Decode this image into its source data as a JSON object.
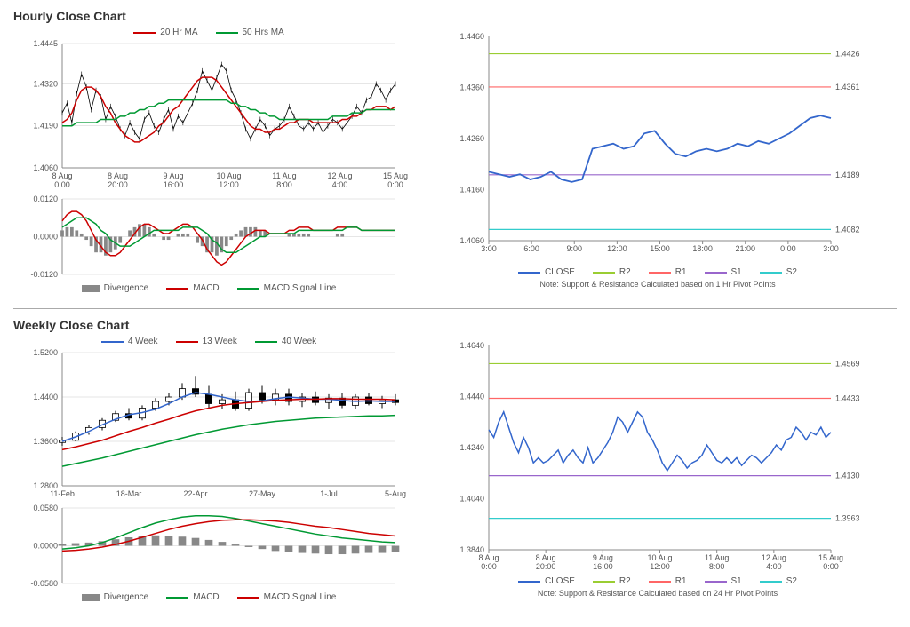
{
  "hourly": {
    "title": "Hourly Close Chart",
    "main": {
      "legend": [
        {
          "label": "20 Hr MA",
          "color": "#cc0000"
        },
        {
          "label": "50 Hrs MA",
          "color": "#009933"
        }
      ],
      "yticks": [
        "1.4445",
        "1.4320",
        "1.4190",
        "1.4060"
      ],
      "ylim": [
        1.406,
        1.4445
      ],
      "xticks": [
        "8 Aug\n0:00",
        "8 Aug\n20:00",
        "9 Aug\n16:00",
        "10 Aug\n12:00",
        "11 Aug\n8:00",
        "12 Aug\n4:00",
        "15 Aug\n0:00"
      ],
      "price_color": "#000000",
      "ma20_color": "#cc0000",
      "ma50_color": "#009933",
      "price": [
        1.423,
        1.426,
        1.42,
        1.429,
        1.435,
        1.431,
        1.424,
        1.43,
        1.428,
        1.421,
        1.425,
        1.422,
        1.418,
        1.416,
        1.42,
        1.417,
        1.415,
        1.421,
        1.423,
        1.419,
        1.417,
        1.421,
        1.424,
        1.418,
        1.422,
        1.42,
        1.423,
        1.426,
        1.43,
        1.436,
        1.433,
        1.43,
        1.434,
        1.438,
        1.436,
        1.43,
        1.427,
        1.423,
        1.418,
        1.415,
        1.418,
        1.421,
        1.419,
        1.416,
        1.418,
        1.419,
        1.421,
        1.425,
        1.422,
        1.419,
        1.418,
        1.42,
        1.418,
        1.42,
        1.417,
        1.419,
        1.421,
        1.42,
        1.418,
        1.42,
        1.422,
        1.425,
        1.423,
        1.427,
        1.428,
        1.432,
        1.43,
        1.427,
        1.43,
        1.432
      ],
      "ma20": [
        1.42,
        1.421,
        1.423,
        1.427,
        1.43,
        1.431,
        1.431,
        1.43,
        1.428,
        1.425,
        1.423,
        1.42,
        1.418,
        1.416,
        1.415,
        1.414,
        1.414,
        1.415,
        1.416,
        1.417,
        1.419,
        1.42,
        1.422,
        1.424,
        1.425,
        1.427,
        1.429,
        1.431,
        1.433,
        1.434,
        1.434,
        1.434,
        1.433,
        1.431,
        1.429,
        1.427,
        1.425,
        1.423,
        1.421,
        1.419,
        1.418,
        1.418,
        1.417,
        1.417,
        1.418,
        1.418,
        1.419,
        1.42,
        1.42,
        1.421,
        1.421,
        1.421,
        1.42,
        1.42,
        1.42,
        1.42,
        1.42,
        1.42,
        1.421,
        1.421,
        1.422,
        1.422,
        1.423,
        1.424,
        1.424,
        1.425,
        1.425,
        1.425,
        1.424,
        1.425
      ],
      "ma50": [
        1.419,
        1.419,
        1.419,
        1.42,
        1.42,
        1.42,
        1.42,
        1.42,
        1.421,
        1.421,
        1.421,
        1.421,
        1.422,
        1.422,
        1.423,
        1.423,
        1.424,
        1.424,
        1.425,
        1.425,
        1.426,
        1.426,
        1.427,
        1.427,
        1.427,
        1.427,
        1.427,
        1.427,
        1.427,
        1.427,
        1.427,
        1.427,
        1.427,
        1.427,
        1.427,
        1.426,
        1.426,
        1.425,
        1.425,
        1.424,
        1.424,
        1.423,
        1.423,
        1.422,
        1.422,
        1.421,
        1.421,
        1.421,
        1.421,
        1.421,
        1.421,
        1.421,
        1.421,
        1.421,
        1.421,
        1.421,
        1.422,
        1.422,
        1.422,
        1.422,
        1.423,
        1.423,
        1.423,
        1.424,
        1.424,
        1.424,
        1.424,
        1.424,
        1.424,
        1.424
      ]
    },
    "macd": {
      "legend": [
        {
          "label": "Divergence",
          "type": "bar",
          "color": "#888888"
        },
        {
          "label": "MACD",
          "color": "#cc0000"
        },
        {
          "label": "MACD Signal Line",
          "color": "#009933"
        }
      ],
      "yticks": [
        "0.0120",
        "0.0000",
        "-0.0120"
      ],
      "ylim": [
        -0.012,
        0.012
      ],
      "macd": [
        0.005,
        0.007,
        0.008,
        0.008,
        0.007,
        0.005,
        0.002,
        -0.001,
        -0.003,
        -0.005,
        -0.006,
        -0.006,
        -0.005,
        -0.003,
        -0.001,
        0.001,
        0.003,
        0.004,
        0.004,
        0.003,
        0.002,
        0.001,
        0.001,
        0.002,
        0.003,
        0.004,
        0.004,
        0.003,
        0.001,
        -0.001,
        -0.004,
        -0.006,
        -0.008,
        -0.009,
        -0.008,
        -0.006,
        -0.004,
        -0.002,
        0.0,
        0.001,
        0.002,
        0.002,
        0.002,
        0.001,
        0.001,
        0.001,
        0.001,
        0.002,
        0.002,
        0.003,
        0.003,
        0.003,
        0.002,
        0.002,
        0.002,
        0.002,
        0.002,
        0.003,
        0.003,
        0.003,
        0.003,
        0.003,
        0.002,
        0.002,
        0.002,
        0.002,
        0.002,
        0.002,
        0.002,
        0.002
      ],
      "signal": [
        0.003,
        0.004,
        0.005,
        0.006,
        0.006,
        0.006,
        0.005,
        0.004,
        0.002,
        0.001,
        -0.001,
        -0.002,
        -0.003,
        -0.003,
        -0.003,
        -0.002,
        -0.001,
        0.0,
        0.001,
        0.002,
        0.002,
        0.002,
        0.002,
        0.002,
        0.002,
        0.003,
        0.003,
        0.003,
        0.003,
        0.002,
        0.001,
        -0.001,
        -0.002,
        -0.004,
        -0.005,
        -0.005,
        -0.005,
        -0.004,
        -0.003,
        -0.002,
        -0.001,
        0.0,
        0.0,
        0.001,
        0.001,
        0.001,
        0.001,
        0.001,
        0.001,
        0.002,
        0.002,
        0.002,
        0.002,
        0.002,
        0.002,
        0.002,
        0.002,
        0.002,
        0.002,
        0.003,
        0.003,
        0.003,
        0.002,
        0.002,
        0.002,
        0.002,
        0.002,
        0.002,
        0.002,
        0.002
      ],
      "divergence": [
        0.002,
        0.003,
        0.003,
        0.002,
        0.001,
        -0.001,
        -0.003,
        -0.005,
        -0.005,
        -0.006,
        -0.005,
        -0.004,
        -0.002,
        0.0,
        0.002,
        0.003,
        0.004,
        0.004,
        0.003,
        0.001,
        0.0,
        -0.001,
        -0.001,
        0.0,
        0.001,
        0.001,
        0.001,
        0.0,
        -0.002,
        -0.003,
        -0.005,
        -0.005,
        -0.006,
        -0.005,
        -0.003,
        -0.001,
        0.001,
        0.002,
        0.003,
        0.003,
        0.003,
        0.002,
        0.002,
        0.0,
        0.0,
        0.0,
        0.0,
        0.001,
        0.001,
        0.001,
        0.001,
        0.001,
        0.0,
        0.0,
        0.0,
        0.0,
        0.0,
        0.001,
        0.001,
        0.0,
        0.0,
        0.0,
        0.0,
        0.0,
        0.0,
        0.0,
        0.0,
        0.0,
        0.0,
        0.0
      ]
    },
    "pivot": {
      "yticks": [
        "1.4460",
        "1.4360",
        "1.4260",
        "1.4160",
        "1.4060"
      ],
      "ylim": [
        1.406,
        1.446
      ],
      "xticks": [
        "3:00",
        "6:00",
        "9:00",
        "12:00",
        "15:00",
        "18:00",
        "21:00",
        "0:00",
        "3:00"
      ],
      "levels": [
        {
          "name": "R2",
          "value": 1.4426,
          "color": "#9acd32"
        },
        {
          "name": "R1",
          "value": 1.4361,
          "color": "#ff6666"
        },
        {
          "name": "S1",
          "value": 1.4189,
          "color": "#9966cc"
        },
        {
          "name": "S2",
          "value": 1.4082,
          "color": "#33cccc"
        }
      ],
      "close_color": "#3366cc",
      "close": [
        1.4195,
        1.419,
        1.4185,
        1.419,
        1.418,
        1.4185,
        1.4195,
        1.418,
        1.4175,
        1.418,
        1.424,
        1.4245,
        1.425,
        1.424,
        1.4245,
        1.427,
        1.4275,
        1.425,
        1.423,
        1.4225,
        1.4235,
        1.424,
        1.4235,
        1.424,
        1.425,
        1.4245,
        1.4255,
        1.425,
        1.426,
        1.427,
        1.4285,
        1.43,
        1.4305,
        1.43
      ],
      "legend": [
        {
          "label": "CLOSE",
          "color": "#3366cc"
        },
        {
          "label": "R2",
          "color": "#9acd32"
        },
        {
          "label": "R1",
          "color": "#ff6666"
        },
        {
          "label": "S1",
          "color": "#9966cc"
        },
        {
          "label": "S2",
          "color": "#33cccc"
        }
      ],
      "note": "Note: Support & Resistance Calculated based on 1 Hr Pivot Points"
    }
  },
  "weekly": {
    "title": "Weekly Close Chart",
    "main": {
      "legend": [
        {
          "label": "4 Week",
          "color": "#3366cc"
        },
        {
          "label": "13 Week",
          "color": "#cc0000"
        },
        {
          "label": "40 Week",
          "color": "#009933"
        }
      ],
      "yticks": [
        "1.5200",
        "1.4400",
        "1.3600",
        "1.2800"
      ],
      "ylim": [
        1.28,
        1.52
      ],
      "xticks": [
        "11-Feb",
        "18-Mar",
        "22-Apr",
        "27-May",
        "1-Jul",
        "5-Aug"
      ],
      "candles": [
        {
          "o": 1.358,
          "h": 1.368,
          "l": 1.352,
          "c": 1.362
        },
        {
          "o": 1.362,
          "h": 1.378,
          "l": 1.36,
          "c": 1.375
        },
        {
          "o": 1.375,
          "h": 1.39,
          "l": 1.372,
          "c": 1.385
        },
        {
          "o": 1.385,
          "h": 1.402,
          "l": 1.38,
          "c": 1.398
        },
        {
          "o": 1.398,
          "h": 1.415,
          "l": 1.395,
          "c": 1.41
        },
        {
          "o": 1.41,
          "h": 1.42,
          "l": 1.398,
          "c": 1.402
        },
        {
          "o": 1.402,
          "h": 1.425,
          "l": 1.398,
          "c": 1.42
        },
        {
          "o": 1.42,
          "h": 1.438,
          "l": 1.415,
          "c": 1.432
        },
        {
          "o": 1.432,
          "h": 1.448,
          "l": 1.425,
          "c": 1.44
        },
        {
          "o": 1.44,
          "h": 1.465,
          "l": 1.435,
          "c": 1.455
        },
        {
          "o": 1.455,
          "h": 1.478,
          "l": 1.44,
          "c": 1.445
        },
        {
          "o": 1.445,
          "h": 1.46,
          "l": 1.42,
          "c": 1.428
        },
        {
          "o": 1.428,
          "h": 1.445,
          "l": 1.418,
          "c": 1.435
        },
        {
          "o": 1.435,
          "h": 1.45,
          "l": 1.415,
          "c": 1.42
        },
        {
          "o": 1.42,
          "h": 1.455,
          "l": 1.415,
          "c": 1.448
        },
        {
          "o": 1.448,
          "h": 1.46,
          "l": 1.428,
          "c": 1.435
        },
        {
          "o": 1.435,
          "h": 1.455,
          "l": 1.425,
          "c": 1.445
        },
        {
          "o": 1.445,
          "h": 1.455,
          "l": 1.425,
          "c": 1.432
        },
        {
          "o": 1.432,
          "h": 1.448,
          "l": 1.422,
          "c": 1.44
        },
        {
          "o": 1.44,
          "h": 1.45,
          "l": 1.425,
          "c": 1.43
        },
        {
          "o": 1.43,
          "h": 1.445,
          "l": 1.418,
          "c": 1.438
        },
        {
          "o": 1.438,
          "h": 1.448,
          "l": 1.42,
          "c": 1.425
        },
        {
          "o": 1.425,
          "h": 1.445,
          "l": 1.418,
          "c": 1.44
        },
        {
          "o": 1.44,
          "h": 1.448,
          "l": 1.425,
          "c": 1.428
        },
        {
          "o": 1.428,
          "h": 1.442,
          "l": 1.42,
          "c": 1.435
        },
        {
          "o": 1.435,
          "h": 1.445,
          "l": 1.425,
          "c": 1.43
        }
      ],
      "ma4_color": "#3366cc",
      "ma13_color": "#cc0000",
      "ma40_color": "#009933",
      "ma4": [
        1.36,
        1.368,
        1.378,
        1.39,
        1.4,
        1.408,
        1.412,
        1.418,
        1.428,
        1.44,
        1.448,
        1.445,
        1.44,
        1.435,
        1.432,
        1.433,
        1.437,
        1.44,
        1.438,
        1.436,
        1.436,
        1.434,
        1.432,
        1.433,
        1.432,
        1.432
      ],
      "ma13": [
        1.345,
        1.35,
        1.356,
        1.362,
        1.37,
        1.378,
        1.385,
        1.393,
        1.4,
        1.408,
        1.415,
        1.42,
        1.425,
        1.428,
        1.43,
        1.432,
        1.434,
        1.435,
        1.436,
        1.436,
        1.437,
        1.437,
        1.436,
        1.436,
        1.436,
        1.435
      ],
      "ma40": [
        1.315,
        1.32,
        1.325,
        1.33,
        1.336,
        1.342,
        1.348,
        1.354,
        1.36,
        1.366,
        1.372,
        1.377,
        1.382,
        1.386,
        1.39,
        1.393,
        1.396,
        1.398,
        1.4,
        1.402,
        1.403,
        1.404,
        1.405,
        1.406,
        1.406,
        1.407
      ]
    },
    "macd": {
      "legend": [
        {
          "label": "Divergence",
          "type": "bar",
          "color": "#888888"
        },
        {
          "label": "MACD",
          "color": "#009933"
        },
        {
          "label": "MACD Signal Line",
          "color": "#cc0000"
        }
      ],
      "yticks": [
        "0.0580",
        "0.0000",
        "-0.0580"
      ],
      "ylim": [
        -0.058,
        0.058
      ],
      "macd": [
        -0.005,
        -0.003,
        0.0,
        0.005,
        0.012,
        0.02,
        0.028,
        0.035,
        0.04,
        0.044,
        0.046,
        0.046,
        0.045,
        0.042,
        0.038,
        0.034,
        0.03,
        0.026,
        0.022,
        0.018,
        0.015,
        0.012,
        0.01,
        0.008,
        0.006,
        0.005
      ],
      "signal": [
        -0.008,
        -0.007,
        -0.005,
        -0.002,
        0.002,
        0.007,
        0.013,
        0.019,
        0.025,
        0.03,
        0.034,
        0.037,
        0.039,
        0.04,
        0.04,
        0.039,
        0.038,
        0.036,
        0.033,
        0.03,
        0.028,
        0.025,
        0.022,
        0.019,
        0.017,
        0.015
      ],
      "divergence": [
        0.003,
        0.004,
        0.005,
        0.007,
        0.01,
        0.013,
        0.015,
        0.016,
        0.015,
        0.014,
        0.012,
        0.009,
        0.006,
        0.002,
        -0.002,
        -0.005,
        -0.008,
        -0.01,
        -0.011,
        -0.012,
        -0.013,
        -0.013,
        -0.012,
        -0.011,
        -0.011,
        -0.01
      ]
    },
    "pivot": {
      "yticks": [
        "1.4640",
        "1.4440",
        "1.4240",
        "1.4040",
        "1.3840"
      ],
      "ylim": [
        1.384,
        1.464
      ],
      "xticks": [
        "8 Aug\n0:00",
        "8 Aug\n20:00",
        "9 Aug\n16:00",
        "10 Aug\n12:00",
        "11 Aug\n8:00",
        "12 Aug\n4:00",
        "15 Aug\n0:00"
      ],
      "levels": [
        {
          "name": "R2",
          "value": 1.4569,
          "color": "#9acd32"
        },
        {
          "name": "R1",
          "value": 1.4433,
          "color": "#ff6666"
        },
        {
          "name": "S1",
          "value": 1.413,
          "color": "#9966cc"
        },
        {
          "name": "S2",
          "value": 1.3963,
          "color": "#33cccc"
        }
      ],
      "close_color": "#3366cc",
      "close": [
        1.431,
        1.428,
        1.434,
        1.438,
        1.432,
        1.426,
        1.422,
        1.428,
        1.424,
        1.418,
        1.42,
        1.418,
        1.419,
        1.421,
        1.423,
        1.418,
        1.421,
        1.423,
        1.42,
        1.418,
        1.424,
        1.418,
        1.42,
        1.423,
        1.426,
        1.43,
        1.436,
        1.434,
        1.43,
        1.434,
        1.438,
        1.436,
        1.43,
        1.427,
        1.423,
        1.418,
        1.415,
        1.418,
        1.421,
        1.419,
        1.416,
        1.418,
        1.419,
        1.421,
        1.425,
        1.422,
        1.419,
        1.418,
        1.42,
        1.418,
        1.42,
        1.417,
        1.419,
        1.421,
        1.42,
        1.418,
        1.42,
        1.422,
        1.425,
        1.423,
        1.427,
        1.428,
        1.432,
        1.43,
        1.427,
        1.43,
        1.429,
        1.432,
        1.428,
        1.43
      ],
      "legend": [
        {
          "label": "CLOSE",
          "color": "#3366cc"
        },
        {
          "label": "R2",
          "color": "#9acd32"
        },
        {
          "label": "R1",
          "color": "#ff6666"
        },
        {
          "label": "S1",
          "color": "#9966cc"
        },
        {
          "label": "S2",
          "color": "#33cccc"
        }
      ],
      "note": "Note: Support & Resistance Calculated based on 24 Hr Pivot Points"
    }
  }
}
